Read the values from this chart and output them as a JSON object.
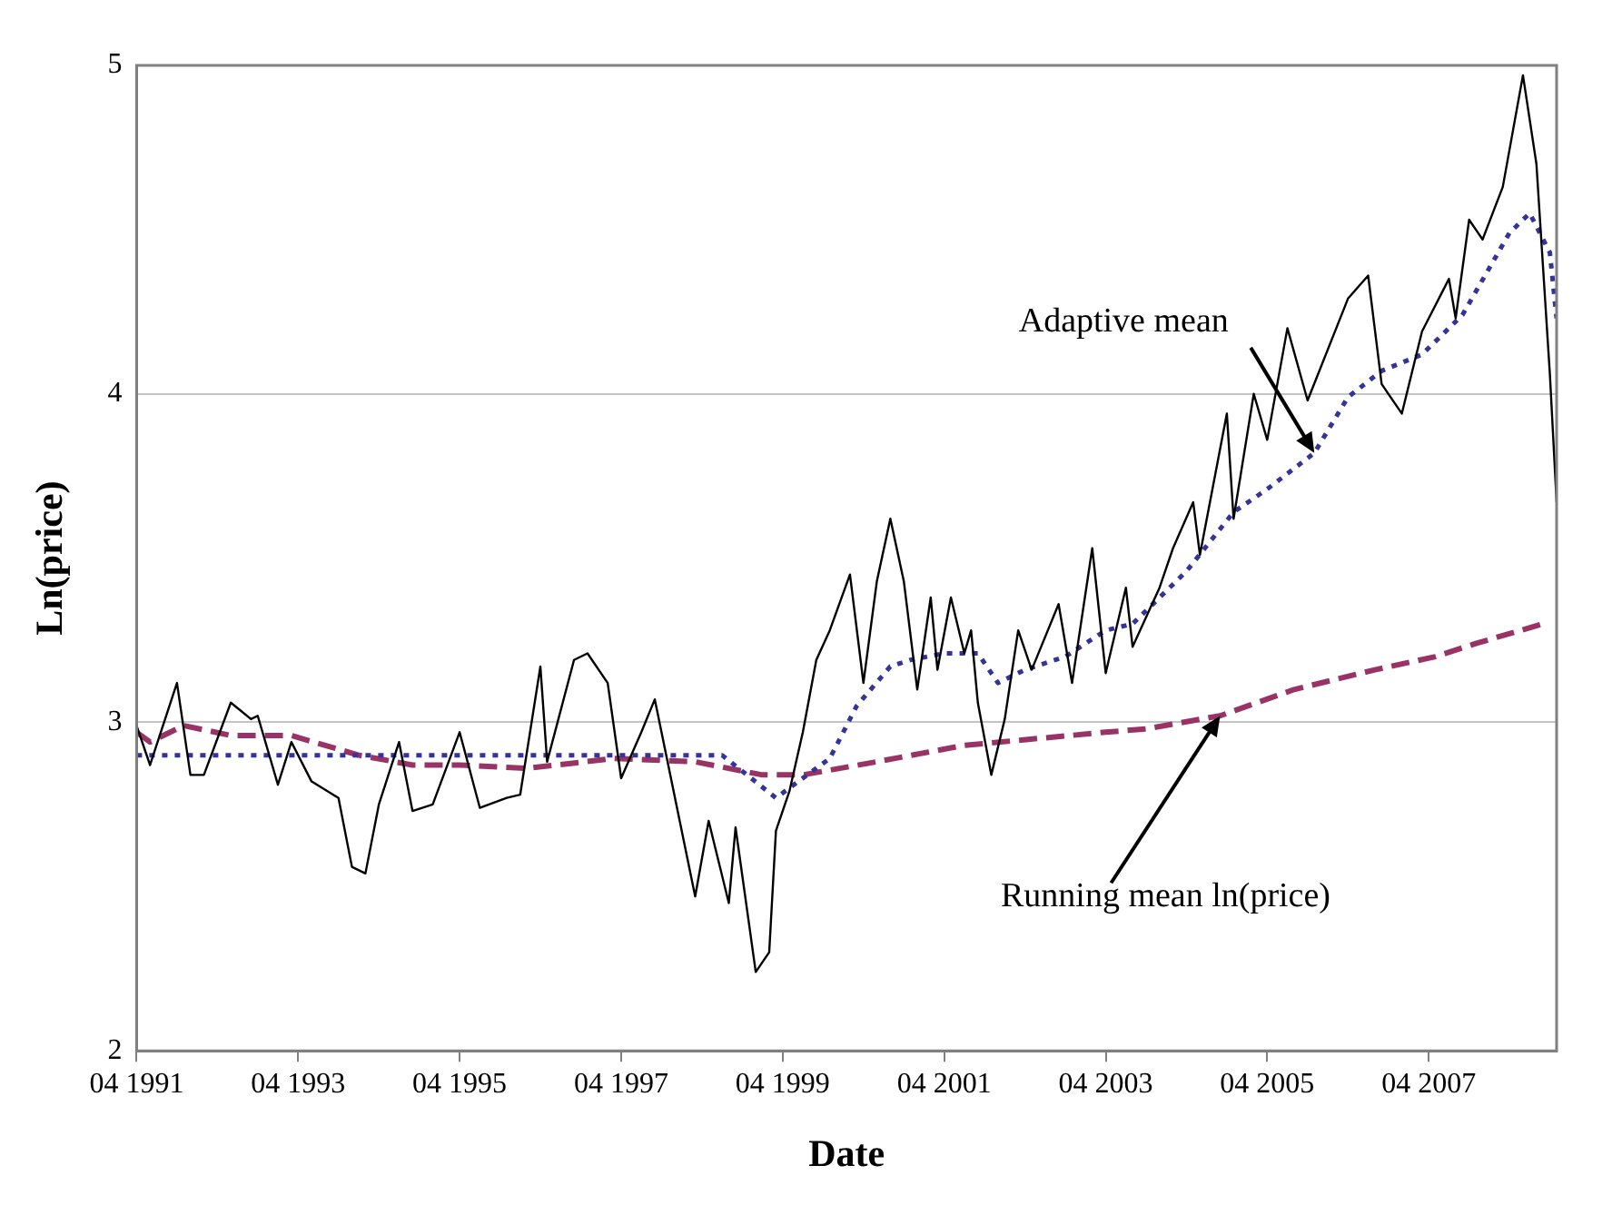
{
  "chart_data": {
    "type": "line",
    "xlabel": "Date",
    "ylabel": "Ln(price)",
    "xlim": [
      "1991-04",
      "2008-11"
    ],
    "xticks": [
      {
        "value": "1991-04",
        "label": "04 1991"
      },
      {
        "value": "1993-04",
        "label": "04 1993"
      },
      {
        "value": "1995-04",
        "label": "04 1995"
      },
      {
        "value": "1997-04",
        "label": "04 1997"
      },
      {
        "value": "1999-04",
        "label": "04 1999"
      },
      {
        "value": "2001-04",
        "label": "04 2001"
      },
      {
        "value": "2003-04",
        "label": "04 2003"
      },
      {
        "value": "2005-04",
        "label": "04 2005"
      },
      {
        "value": "2007-04",
        "label": "04 2007"
      }
    ],
    "ylim": [
      2,
      5
    ],
    "yticks": [
      2,
      3,
      4,
      5
    ],
    "grid": "y",
    "legend": false,
    "marker": "none",
    "series": [
      {
        "color": "#000000",
        "line_style": "solid",
        "x": [
          "1991-04",
          "1991-06",
          "1991-10",
          "1991-12",
          "1992-02",
          "1992-06",
          "1992-09",
          "1992-10",
          "1993-01",
          "1993-03",
          "1993-06",
          "1993-10",
          "1993-12",
          "1994-02",
          "1994-04",
          "1994-07",
          "1994-09",
          "1994-12",
          "1995-04",
          "1995-07",
          "1995-11",
          "1996-01",
          "1996-04",
          "1996-05",
          "1996-09",
          "1996-11",
          "1997-02",
          "1997-04",
          "1997-07",
          "1997-09",
          "1998-03",
          "1998-05",
          "1998-08",
          "1998-09",
          "1998-12",
          "1999-02",
          "1999-03",
          "1999-05",
          "1999-07",
          "1999-09",
          "1999-11",
          "2000-02",
          "2000-04",
          "2000-06",
          "2000-08",
          "2000-10",
          "2000-12",
          "2001-02",
          "2001-03",
          "2001-05",
          "2001-07",
          "2001-08",
          "2001-09",
          "2001-11",
          "2002-01",
          "2002-03",
          "2002-05",
          "2002-09",
          "2002-11",
          "2003-02",
          "2003-04",
          "2003-07",
          "2003-08",
          "2003-12",
          "2004-02",
          "2004-05",
          "2004-06",
          "2004-10",
          "2004-11",
          "2005-02",
          "2005-04",
          "2005-07",
          "2005-10",
          "2006-04",
          "2006-07",
          "2006-09",
          "2006-12",
          "2007-03",
          "2007-07",
          "2007-08",
          "2007-10",
          "2007-12",
          "2008-03",
          "2008-06",
          "2008-08",
          "2008-10",
          "2008-11"
        ],
        "values": [
          2.99,
          2.87,
          3.12,
          2.84,
          2.84,
          3.06,
          3.01,
          3.02,
          2.81,
          2.94,
          2.82,
          2.77,
          2.56,
          2.54,
          2.75,
          2.94,
          2.73,
          2.75,
          2.97,
          2.74,
          2.77,
          2.78,
          3.17,
          2.88,
          3.19,
          3.21,
          3.12,
          2.83,
          2.97,
          3.07,
          2.47,
          2.7,
          2.45,
          2.68,
          2.24,
          2.3,
          2.67,
          2.79,
          2.97,
          3.19,
          3.28,
          3.45,
          3.12,
          3.43,
          3.62,
          3.43,
          3.1,
          3.38,
          3.16,
          3.38,
          3.21,
          3.28,
          3.06,
          2.84,
          3.01,
          3.28,
          3.16,
          3.36,
          3.12,
          3.53,
          3.15,
          3.41,
          3.23,
          3.41,
          3.53,
          3.67,
          3.51,
          3.94,
          3.62,
          4.0,
          3.86,
          4.2,
          3.98,
          4.29,
          4.36,
          4.03,
          3.94,
          4.19,
          4.35,
          4.23,
          4.53,
          4.47,
          4.63,
          4.97,
          4.7,
          4.06,
          3.67
        ]
      },
      {
        "color": "#333399",
        "line_style": "dotted",
        "x": [
          "1991-04",
          "1995-01",
          "1998-07",
          "1999-03",
          "1999-11",
          "2000-03",
          "2000-08",
          "2000-11",
          "2001-04",
          "2001-09",
          "2001-12",
          "2002-04",
          "2002-10",
          "2003-04",
          "2003-08",
          "2004-04",
          "2004-11",
          "2005-04",
          "2005-11",
          "2006-04",
          "2006-09",
          "2007-03",
          "2007-09",
          "2008-04",
          "2008-07",
          "2008-10",
          "2008-11"
        ],
        "values": [
          2.9,
          2.9,
          2.9,
          2.77,
          2.89,
          3.05,
          3.17,
          3.19,
          3.21,
          3.21,
          3.12,
          3.16,
          3.2,
          3.28,
          3.3,
          3.46,
          3.64,
          3.71,
          3.82,
          3.99,
          4.07,
          4.12,
          4.24,
          4.49,
          4.55,
          4.43,
          4.23
        ]
      },
      {
        "color": "#993366",
        "line_style": "dashed",
        "x": [
          "1991-04",
          "1991-06",
          "1991-11",
          "1992-06",
          "1993-03",
          "1994-01",
          "1994-09",
          "1995-04",
          "1996-02",
          "1997-03",
          "1998-03",
          "1999-01",
          "1999-07",
          "2000-06",
          "2001-07",
          "2003-04",
          "2003-10",
          "2004-09",
          "2005-08",
          "2006-08",
          "2007-05",
          "2007-11",
          "2008-09"
        ],
        "values": [
          2.97,
          2.94,
          2.99,
          2.96,
          2.96,
          2.9,
          2.87,
          2.87,
          2.86,
          2.89,
          2.88,
          2.84,
          2.84,
          2.88,
          2.93,
          2.97,
          2.98,
          3.02,
          3.1,
          3.16,
          3.2,
          3.24,
          3.3
        ]
      }
    ],
    "annotations": [
      {
        "text": "Adaptive mean",
        "x": "2005-11",
        "y": 3.82
      },
      {
        "text": "Running mean ln(price)",
        "x": "2004-09",
        "y": 3.02
      }
    ]
  }
}
